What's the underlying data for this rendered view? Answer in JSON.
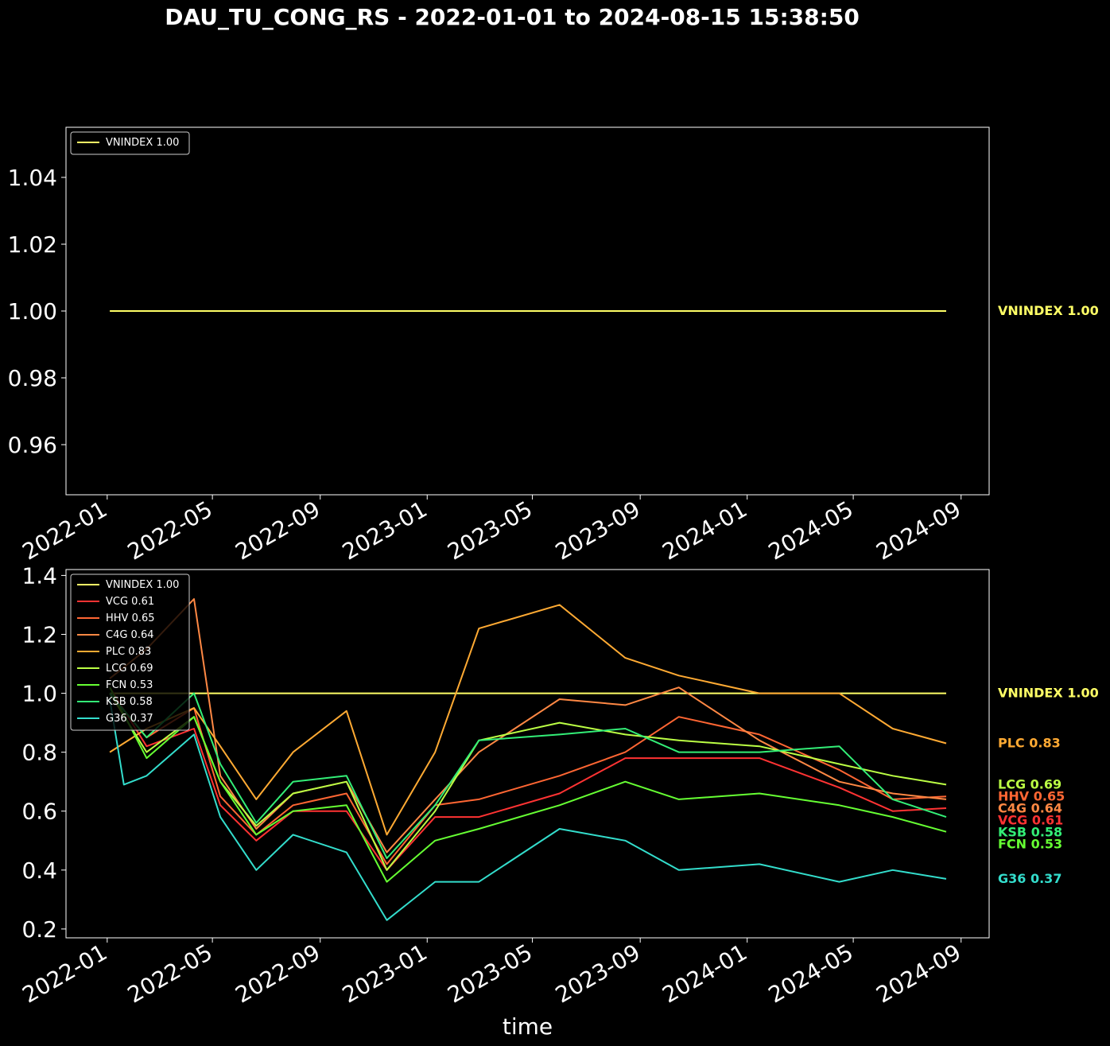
{
  "title": "DAU_TU_CONG_RS - 2022-01-01 to 2024-08-15 15:38:50",
  "chart_data": [
    {
      "type": "line",
      "ylim": [
        0.945,
        1.055
      ],
      "yticks": [
        0.96,
        0.98,
        1.0,
        1.02,
        1.04
      ],
      "xticks": [
        "2022-01",
        "2022-05",
        "2022-09",
        "2023-01",
        "2023-05",
        "2023-09",
        "2024-01",
        "2024-05",
        "2024-09"
      ],
      "xlim": [
        "2021-11-15",
        "2024-10-03"
      ],
      "legend": "top-left",
      "xlabel": "",
      "series": [
        {
          "name": "VNINDEX 1.00",
          "color": "#ffff66",
          "end_label": "VNINDEX 1.00",
          "end_value": 1.0,
          "x": [
            "2022-01-04",
            "2024-08-15"
          ],
          "values": [
            1.0,
            1.0
          ]
        }
      ]
    },
    {
      "type": "line",
      "ylim": [
        0.17,
        1.42
      ],
      "yticks": [
        0.2,
        0.4,
        0.6,
        0.8,
        1.0,
        1.2,
        1.4
      ],
      "xticks": [
        "2022-01",
        "2022-05",
        "2022-09",
        "2023-01",
        "2023-05",
        "2023-09",
        "2024-01",
        "2024-05",
        "2024-09"
      ],
      "xlim": [
        "2021-11-15",
        "2024-10-03"
      ],
      "legend": "top-left",
      "xlabel": "time",
      "series": [
        {
          "name": "VNINDEX 1.00",
          "color": "#ffff66",
          "end_label": "VNINDEX 1.00",
          "end_value": 1.0,
          "x": [
            "2022-01-04",
            "2024-08-15"
          ],
          "values": [
            1.0,
            1.0
          ]
        },
        {
          "name": "VCG 0.61",
          "color": "#ff3333",
          "end_label": "VCG 0.61",
          "end_value": 0.61,
          "x": [
            "2022-01-04",
            "2022-02-15",
            "2022-04-10",
            "2022-05-10",
            "2022-06-20",
            "2022-08-01",
            "2022-10-01",
            "2022-11-16",
            "2023-01-10",
            "2023-03-01",
            "2023-06-01",
            "2023-08-15",
            "2023-10-15",
            "2024-01-15",
            "2024-04-15",
            "2024-06-15",
            "2024-08-15"
          ],
          "values": [
            1.02,
            0.82,
            0.88,
            0.62,
            0.5,
            0.6,
            0.6,
            0.4,
            0.58,
            0.58,
            0.66,
            0.78,
            0.78,
            0.78,
            0.68,
            0.6,
            0.61
          ]
        },
        {
          "name": "HHV 0.65",
          "color": "#ff6633",
          "end_label": "HHV 0.65",
          "end_value": 0.65,
          "x": [
            "2022-01-04",
            "2022-02-15",
            "2022-04-10",
            "2022-05-10",
            "2022-06-20",
            "2022-08-01",
            "2022-10-01",
            "2022-11-16",
            "2023-01-10",
            "2023-03-01",
            "2023-06-01",
            "2023-08-15",
            "2023-10-15",
            "2024-01-15",
            "2024-04-15",
            "2024-06-15",
            "2024-08-15"
          ],
          "values": [
            1.0,
            0.85,
            0.95,
            0.65,
            0.52,
            0.62,
            0.66,
            0.42,
            0.62,
            0.64,
            0.72,
            0.8,
            0.92,
            0.86,
            0.74,
            0.64,
            0.65
          ]
        },
        {
          "name": "C4G 0.64",
          "color": "#ff8844",
          "end_label": "C4G 0.64",
          "end_value": 0.64,
          "x": [
            "2022-01-04",
            "2022-02-15",
            "2022-04-10",
            "2022-05-10",
            "2022-06-20",
            "2022-08-01",
            "2022-10-01",
            "2022-11-16",
            "2023-01-10",
            "2023-03-01",
            "2023-06-01",
            "2023-08-15",
            "2023-10-15",
            "2024-01-15",
            "2024-04-15",
            "2024-06-15",
            "2024-08-15"
          ],
          "values": [
            1.05,
            1.15,
            1.32,
            0.72,
            0.54,
            0.66,
            0.7,
            0.46,
            0.64,
            0.8,
            0.98,
            0.96,
            1.02,
            0.84,
            0.7,
            0.66,
            0.64
          ]
        },
        {
          "name": "PLC 0.83",
          "color": "#ffaa33",
          "end_label": "PLC 0.83",
          "end_value": 0.83,
          "x": [
            "2022-01-04",
            "2022-02-15",
            "2022-04-10",
            "2022-05-10",
            "2022-06-20",
            "2022-08-01",
            "2022-10-01",
            "2022-11-16",
            "2023-01-10",
            "2023-03-01",
            "2023-06-01",
            "2023-08-15",
            "2023-10-15",
            "2024-01-15",
            "2024-04-15",
            "2024-06-15",
            "2024-08-15"
          ],
          "values": [
            0.8,
            0.88,
            0.95,
            0.82,
            0.64,
            0.8,
            0.94,
            0.52,
            0.8,
            1.22,
            1.3,
            1.12,
            1.06,
            1.0,
            1.0,
            0.88,
            0.83
          ]
        },
        {
          "name": "LCG 0.69",
          "color": "#bbff44",
          "end_label": "LCG 0.69",
          "end_value": 0.69,
          "x": [
            "2022-01-04",
            "2022-02-15",
            "2022-04-10",
            "2022-05-10",
            "2022-06-20",
            "2022-08-01",
            "2022-10-01",
            "2022-11-16",
            "2023-01-10",
            "2023-03-01",
            "2023-06-01",
            "2023-08-15",
            "2023-10-15",
            "2024-01-15",
            "2024-04-15",
            "2024-06-15",
            "2024-08-15"
          ],
          "values": [
            1.0,
            0.8,
            0.92,
            0.7,
            0.55,
            0.66,
            0.7,
            0.4,
            0.6,
            0.84,
            0.9,
            0.86,
            0.84,
            0.82,
            0.76,
            0.72,
            0.69
          ]
        },
        {
          "name": "FCN 0.53",
          "color": "#66ff33",
          "end_label": "FCN 0.53",
          "end_value": 0.53,
          "x": [
            "2022-01-04",
            "2022-02-15",
            "2022-04-10",
            "2022-05-10",
            "2022-06-20",
            "2022-08-01",
            "2022-10-01",
            "2022-11-16",
            "2023-01-10",
            "2023-03-01",
            "2023-06-01",
            "2023-08-15",
            "2023-10-15",
            "2024-01-15",
            "2024-04-15",
            "2024-06-15",
            "2024-08-15"
          ],
          "values": [
            1.02,
            0.78,
            0.92,
            0.7,
            0.52,
            0.6,
            0.62,
            0.36,
            0.5,
            0.54,
            0.62,
            0.7,
            0.64,
            0.66,
            0.62,
            0.58,
            0.53
          ]
        },
        {
          "name": "KSB 0.58",
          "color": "#33ee77",
          "end_label": "KSB 0.58",
          "end_value": 0.58,
          "x": [
            "2022-01-04",
            "2022-02-15",
            "2022-04-10",
            "2022-05-10",
            "2022-06-20",
            "2022-08-01",
            "2022-10-01",
            "2022-11-16",
            "2023-01-10",
            "2023-03-01",
            "2023-06-01",
            "2023-08-15",
            "2023-10-15",
            "2024-01-15",
            "2024-04-15",
            "2024-06-15",
            "2024-08-15"
          ],
          "values": [
            1.0,
            0.85,
            1.0,
            0.76,
            0.56,
            0.7,
            0.72,
            0.44,
            0.62,
            0.84,
            0.86,
            0.88,
            0.8,
            0.8,
            0.82,
            0.64,
            0.58
          ]
        },
        {
          "name": "G36 0.37",
          "color": "#33ddcc",
          "end_label": "G36 0.37",
          "end_value": 0.37,
          "x": [
            "2022-01-04",
            "2022-01-20",
            "2022-02-15",
            "2022-04-10",
            "2022-05-10",
            "2022-06-20",
            "2022-08-01",
            "2022-10-01",
            "2022-11-16",
            "2023-01-10",
            "2023-03-01",
            "2023-06-01",
            "2023-08-15",
            "2023-10-15",
            "2024-01-15",
            "2024-04-15",
            "2024-06-15",
            "2024-08-15"
          ],
          "values": [
            0.98,
            0.69,
            0.72,
            0.86,
            0.58,
            0.4,
            0.52,
            0.46,
            0.23,
            0.36,
            0.36,
            0.54,
            0.5,
            0.4,
            0.42,
            0.36,
            0.4,
            0.37
          ]
        }
      ]
    }
  ]
}
